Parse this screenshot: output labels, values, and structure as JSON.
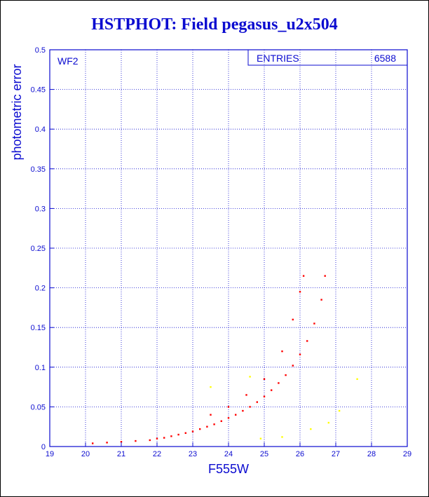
{
  "chart_data": {
    "type": "scatter",
    "title": "HSTPHOT: Field pegasus_u2x504",
    "xlabel": "F555W",
    "ylabel": "photometric error",
    "xlim": [
      19,
      29
    ],
    "ylim": [
      0,
      0.5
    ],
    "x_ticks": [
      "19",
      "20",
      "21",
      "22",
      "23",
      "24",
      "25",
      "26",
      "27",
      "28",
      "29"
    ],
    "y_ticks": [
      "0",
      "0.05",
      "0.1",
      "0.15",
      "0.2",
      "0.25",
      "0.3",
      "0.35",
      "0.4",
      "0.45",
      "0.5"
    ],
    "grid": true,
    "panel_label": "WF2",
    "stats_box": {
      "label": "ENTRIES",
      "value": "6588"
    },
    "colors": {
      "axis": "#0b0bd0",
      "main_series": "#ff0000",
      "outliers": "#ffff00"
    },
    "series": [
      {
        "color": "#ff0000",
        "points": [
          [
            20.2,
            0.004
          ],
          [
            20.6,
            0.005
          ],
          [
            21.0,
            0.006
          ],
          [
            21.4,
            0.007
          ],
          [
            21.8,
            0.008
          ],
          [
            22.0,
            0.01
          ],
          [
            22.2,
            0.011
          ],
          [
            22.4,
            0.013
          ],
          [
            22.6,
            0.015
          ],
          [
            22.8,
            0.017
          ],
          [
            23.0,
            0.019
          ],
          [
            23.2,
            0.022
          ],
          [
            23.4,
            0.025
          ],
          [
            23.6,
            0.028
          ],
          [
            23.8,
            0.032
          ],
          [
            24.0,
            0.036
          ],
          [
            24.2,
            0.04
          ],
          [
            24.4,
            0.045
          ],
          [
            24.6,
            0.05
          ],
          [
            24.8,
            0.056
          ],
          [
            25.0,
            0.063
          ],
          [
            25.2,
            0.071
          ],
          [
            25.4,
            0.08
          ],
          [
            25.6,
            0.09
          ],
          [
            25.8,
            0.102
          ],
          [
            26.0,
            0.116
          ],
          [
            26.2,
            0.133
          ],
          [
            26.4,
            0.155
          ],
          [
            26.6,
            0.185
          ],
          [
            26.7,
            0.215
          ],
          [
            23.5,
            0.04
          ],
          [
            24.0,
            0.05
          ],
          [
            24.5,
            0.065
          ],
          [
            25.0,
            0.085
          ],
          [
            25.5,
            0.12
          ],
          [
            25.8,
            0.16
          ],
          [
            26.0,
            0.195
          ],
          [
            26.1,
            0.215
          ]
        ]
      },
      {
        "color": "#ffff00",
        "points": [
          [
            23.5,
            0.075
          ],
          [
            24.6,
            0.088
          ],
          [
            25.5,
            0.012
          ],
          [
            26.3,
            0.022
          ],
          [
            26.8,
            0.03
          ],
          [
            27.1,
            0.045
          ],
          [
            27.6,
            0.085
          ],
          [
            24.9,
            0.01
          ]
        ]
      }
    ]
  }
}
